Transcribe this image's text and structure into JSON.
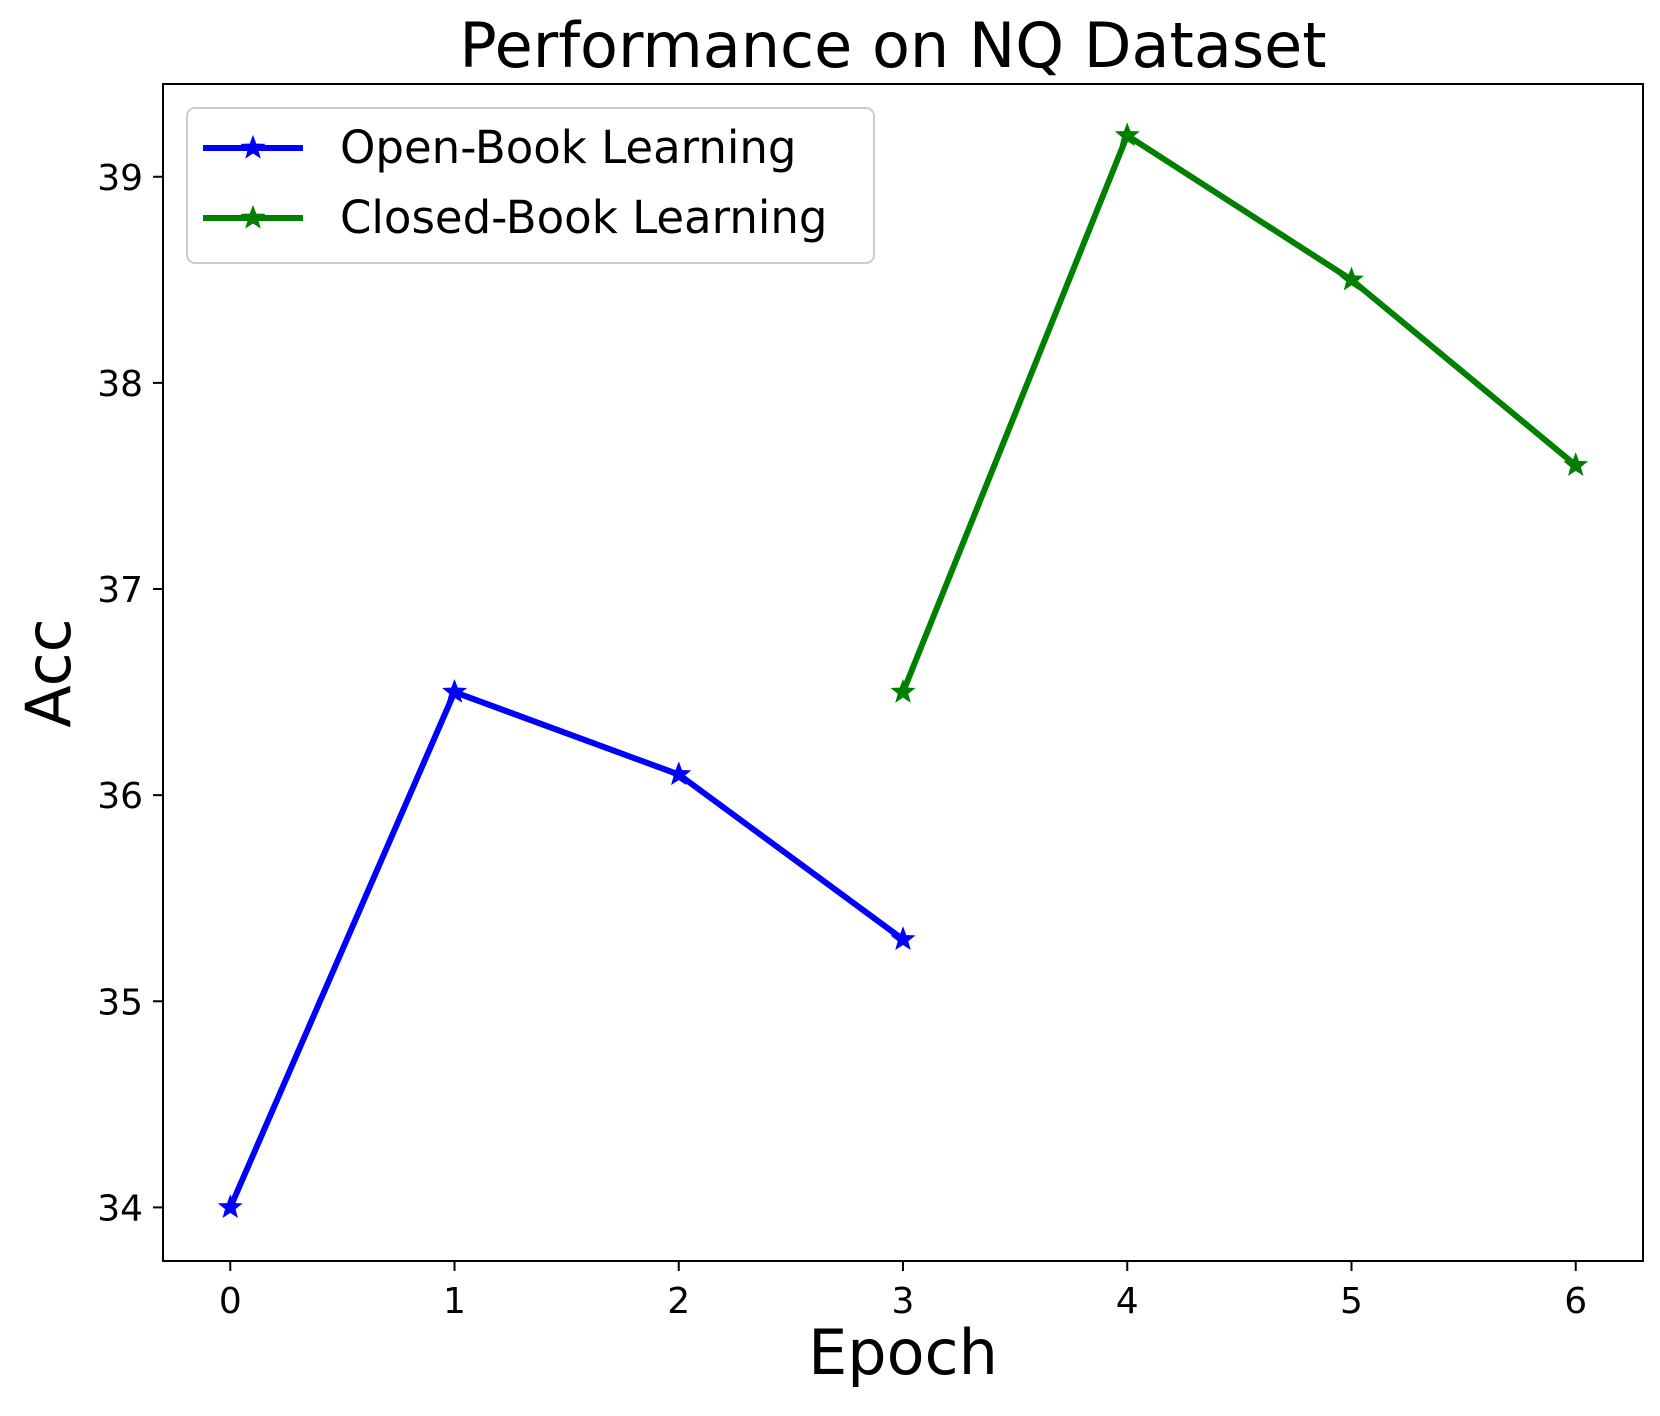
{
  "chart_data": {
    "type": "line",
    "title": "Performance on NQ Dataset",
    "xlabel": "Epoch",
    "ylabel": "Acc",
    "xlim": [
      -0.3,
      6.3
    ],
    "ylim": [
      33.74,
      39.45
    ],
    "xticks": [
      0,
      1,
      2,
      3,
      4,
      5,
      6
    ],
    "yticks": [
      34,
      35,
      36,
      37,
      38,
      39
    ],
    "grid": false,
    "legend_position": "top-left",
    "series": [
      {
        "name": "Open-Book Learning",
        "color": "#0000ff",
        "marker": "star",
        "x": [
          0,
          1,
          2,
          3
        ],
        "y": [
          34.0,
          36.5,
          36.1,
          35.3
        ]
      },
      {
        "name": "Closed-Book Learning",
        "color": "#008000",
        "marker": "star",
        "x": [
          3,
          4,
          5,
          6
        ],
        "y": [
          36.5,
          39.2,
          38.5,
          37.6
        ]
      }
    ]
  }
}
